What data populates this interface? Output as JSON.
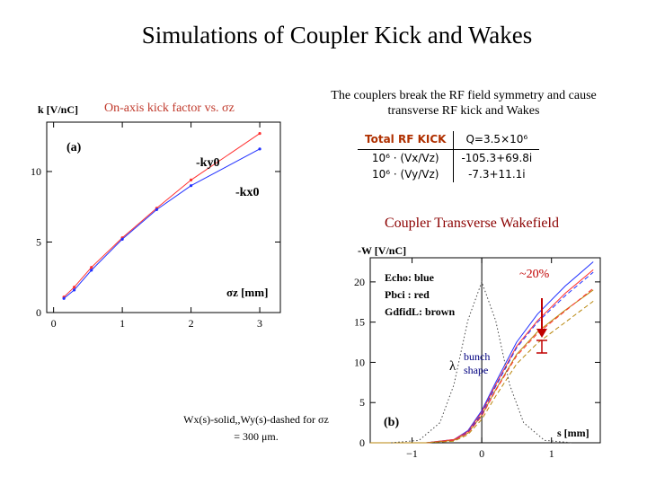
{
  "title": "Simulations of Coupler Kick and Wakes",
  "left_caption": "On-axis kick factor vs. σz",
  "description": "The couplers break the RF field symmetry and cause transverse RF kick and Wakes",
  "rf_table": {
    "header": [
      "Total RF KICK",
      "Q=3.5×10⁶"
    ],
    "rows": [
      [
        "10⁶ · (Vx/Vz)",
        "-105.3+69.8i"
      ],
      [
        "10⁶ · (Vy/Vz)",
        "-7.3+11.1i"
      ]
    ]
  },
  "wake_title": "Coupler Transverse Wakefield",
  "bottom_caption": {
    "line1": "Wx(s)-solid,,Wy(s)-dashed for σz",
    "line2": "= 300 μm."
  },
  "chart_data": [
    {
      "type": "line",
      "panel_label": "(a)",
      "ylabel": "k [V/nC]",
      "xlabel": "σz [mm]",
      "xlim": [
        -0.1,
        3.3
      ],
      "ylim": [
        0,
        13.5
      ],
      "x_ticks": [
        0,
        1,
        2,
        3
      ],
      "y_ticks": [
        0,
        5,
        10
      ],
      "series": [
        {
          "name": "-ky0",
          "color": "#ff3030",
          "x": [
            0.15,
            0.3,
            0.55,
            1.0,
            1.5,
            2.0,
            3.0
          ],
          "y": [
            1.1,
            1.8,
            3.2,
            5.3,
            7.4,
            9.4,
            12.7
          ]
        },
        {
          "name": "-kx0",
          "color": "#2030ff",
          "x": [
            0.15,
            0.3,
            0.55,
            1.0,
            1.5,
            2.0,
            3.0
          ],
          "y": [
            1.0,
            1.6,
            3.0,
            5.2,
            7.3,
            9.0,
            11.6
          ]
        }
      ],
      "grid": false
    },
    {
      "type": "line",
      "panel_label": "(b)",
      "ylabel": "-W [V/nC]",
      "xlabel": "s [mm]",
      "xlim": [
        -1.6,
        1.7
      ],
      "ylim": [
        0,
        23
      ],
      "x_ticks": [
        -1,
        0,
        1
      ],
      "y_ticks": [
        0,
        5,
        10,
        15,
        20
      ],
      "legend": [
        "Echo: blue",
        "Pbci : red",
        "GdfidL: brown"
      ],
      "annotations": {
        "percent": "~20%",
        "bunch": "bunch shape",
        "lambda": "λ"
      },
      "series": [
        {
          "color": "#2030ff",
          "style": "solid",
          "x": [
            -1.6,
            -0.8,
            -0.4,
            -0.2,
            0.0,
            0.2,
            0.5,
            0.8,
            1.2,
            1.6
          ],
          "y": [
            0,
            0,
            0.4,
            1.5,
            4,
            7.5,
            12.5,
            16,
            19.5,
            22.5
          ]
        },
        {
          "color": "#ff3030",
          "style": "solid",
          "x": [
            -1.6,
            -0.8,
            -0.4,
            -0.2,
            0.0,
            0.2,
            0.5,
            0.8,
            1.2,
            1.6
          ],
          "y": [
            0,
            0,
            0.4,
            1.4,
            3.8,
            7.2,
            12,
            15.2,
            18.6,
            21.5
          ]
        },
        {
          "color": "#b8860b",
          "style": "solid",
          "x": [
            -1.6,
            -0.8,
            -0.4,
            -0.2,
            0.0,
            0.2,
            0.5,
            0.8,
            1.2,
            1.6
          ],
          "y": [
            0,
            0,
            0.3,
            1.2,
            3.4,
            6.6,
            11,
            13.8,
            16.5,
            19
          ]
        },
        {
          "color": "#2030ff",
          "style": "dashed",
          "x": [
            -1.6,
            -0.8,
            -0.4,
            -0.2,
            0.0,
            0.2,
            0.5,
            0.8,
            1.2,
            1.6
          ],
          "y": [
            0,
            0,
            0.3,
            1.3,
            3.6,
            7,
            11.8,
            15,
            18.3,
            21.2
          ]
        },
        {
          "color": "#ff3030",
          "style": "dashed",
          "x": [
            -1.6,
            -0.8,
            -0.4,
            -0.2,
            0.0,
            0.2,
            0.5,
            0.8,
            1.2,
            1.6
          ],
          "y": [
            0,
            0,
            0.3,
            1.2,
            3.3,
            6.5,
            10.8,
            13.6,
            16.4,
            19.2
          ]
        },
        {
          "color": "#b8860b",
          "style": "dashed",
          "x": [
            -1.6,
            -0.8,
            -0.4,
            -0.2,
            0.0,
            0.2,
            0.5,
            0.8,
            1.2,
            1.6
          ],
          "y": [
            0,
            0,
            0.2,
            1.0,
            2.9,
            5.8,
            9.8,
            12.4,
            15,
            17.6
          ]
        },
        {
          "color": "#444444",
          "style": "dotted",
          "name": "λ",
          "x": [
            -1.3,
            -0.9,
            -0.6,
            -0.4,
            -0.2,
            0.0,
            0.2,
            0.4,
            0.6,
            0.9,
            1.3
          ],
          "y": [
            0,
            0.3,
            2.5,
            7.2,
            15.2,
            20,
            15.2,
            7.2,
            2.5,
            0.3,
            0
          ]
        }
      ],
      "grid": false
    }
  ]
}
